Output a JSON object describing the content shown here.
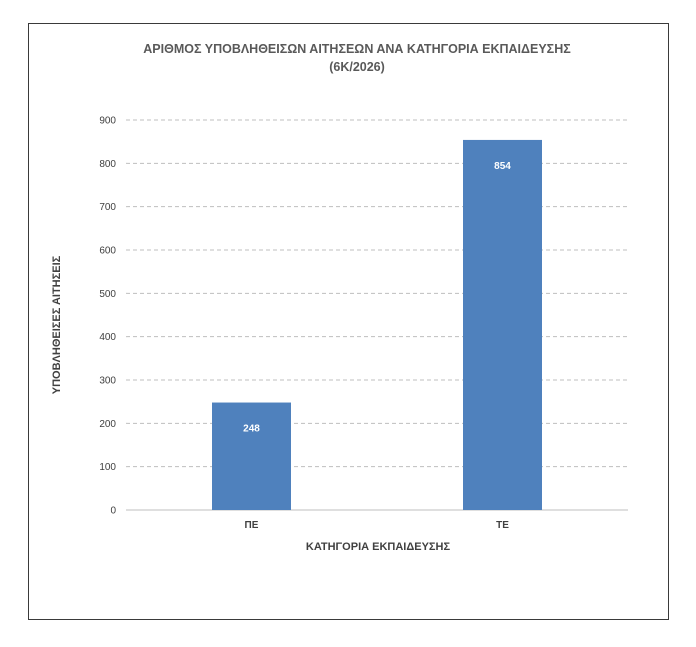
{
  "chart_data": {
    "type": "bar",
    "title_line1": "ΑΡΙΘΜΟΣ ΥΠΟΒΛΗΘΕΙΣΩΝ ΑΙΤΗΣΕΩΝ ΑΝΑ ΚΑΤΗΓΟΡΙΑ ΕΚΠΑΙΔΕΥΣΗΣ",
    "title_line2": "(6Κ/2026)",
    "xlabel": "ΚΑΤΗΓΟΡΙΑ ΕΚΠΑΙΔΕΥΣΗΣ",
    "ylabel": "ΥΠΟΒΛΗΘΕΙΣΕΣ ΑΙΤΗΣΕΙΣ",
    "categories": [
      "ΠΕ",
      "ΤΕ"
    ],
    "values": [
      248,
      854
    ],
    "ylim": [
      0,
      900
    ],
    "yticks": [
      0,
      100,
      200,
      300,
      400,
      500,
      600,
      700,
      800,
      900
    ],
    "grid": true,
    "grid_style": "dashed",
    "bar_color": "#4f81bd",
    "data_labels": true,
    "data_label_position": "inside-top"
  }
}
